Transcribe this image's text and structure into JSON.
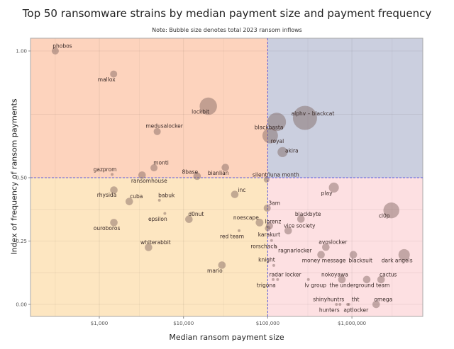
{
  "chart_data": {
    "type": "scatter",
    "title": "Top 50 ransomware strains by median payment size and payment frequency",
    "subtitle": "Note: Bubble size denotes total 2023 ransom inflows",
    "xlabel": "Median ransom payment size",
    "ylabel": "Index of frequency of ransom payments",
    "x_scale": "log",
    "xlim": [
      200,
      9000000
    ],
    "ylim": [
      -0.05,
      1.05
    ],
    "x_ticks": [
      1000,
      10000,
      100000,
      1000000
    ],
    "x_tick_labels": [
      "$1,000",
      "$10,000",
      "$100,000",
      "$1,000,000"
    ],
    "y_ticks": [
      0,
      0.25,
      0.5,
      1.0
    ],
    "y_tick_labels": [
      "0.00",
      "0.25",
      "0.50",
      "1.00"
    ],
    "thresholds": {
      "x": 100000,
      "y": 0.5
    },
    "grid": true,
    "quadrant_colors": {
      "top_left": "#fdd3bd",
      "top_right": "#cbcfdf",
      "bottom_left": "#fde6c1",
      "bottom_right": "#fde0e2"
    },
    "bubble_color": "#7a5f5a",
    "threshold_color": "#5a5ae0",
    "points": [
      {
        "name": "phobos",
        "x": 300,
        "y": 1.0,
        "size": 25
      },
      {
        "name": "mallox",
        "x": 1480,
        "y": 0.909,
        "size": 25
      },
      {
        "name": "lockbit",
        "x": 19700,
        "y": 0.782,
        "size": 150
      },
      {
        "name": "medusalocker",
        "x": 4870,
        "y": 0.682,
        "size": 25
      },
      {
        "name": "monti",
        "x": 4460,
        "y": 0.539,
        "size": 25
      },
      {
        "name": "bianlian",
        "x": 31400,
        "y": 0.54,
        "size": 28
      },
      {
        "name": "gazprom",
        "x": 1420,
        "y": 0.513,
        "size": 4
      },
      {
        "name": "ransomhouse",
        "x": 3220,
        "y": 0.51,
        "size": 28
      },
      {
        "name": "8base",
        "x": 14500,
        "y": 0.506,
        "size": 28
      },
      {
        "name": "silent/luna month",
        "x": 97000,
        "y": 0.492,
        "size": 16
      },
      {
        "name": "rhysida",
        "x": 1490,
        "y": 0.451,
        "size": 28
      },
      {
        "name": "cuba",
        "x": 2270,
        "y": 0.406,
        "size": 28
      },
      {
        "name": "babuk",
        "x": 5170,
        "y": 0.411,
        "size": 4
      },
      {
        "name": "epsilon",
        "x": 6000,
        "y": 0.359,
        "size": 4
      },
      {
        "name": "d0nut",
        "x": 11600,
        "y": 0.336,
        "size": 28
      },
      {
        "name": "inc",
        "x": 40600,
        "y": 0.434,
        "size": 28
      },
      {
        "name": "noescape",
        "x": 80000,
        "y": 0.323,
        "size": 30
      },
      {
        "name": "red team",
        "x": 45700,
        "y": 0.291,
        "size": 4
      },
      {
        "name": "ouroboros",
        "x": 1490,
        "y": 0.323,
        "size": 28
      },
      {
        "name": "whiterabbit",
        "x": 3840,
        "y": 0.225,
        "size": 28
      },
      {
        "name": "mario",
        "x": 28600,
        "y": 0.155,
        "size": 28
      },
      {
        "name": "3am",
        "x": 98600,
        "y": 0.38,
        "size": 25
      },
      {
        "name": "lorenz",
        "x": 105000,
        "y": 0.31,
        "size": 25
      },
      {
        "name": "karakurt",
        "x": 100000,
        "y": 0.3,
        "size": 16
      },
      {
        "name": "blackbyte",
        "x": 248000,
        "y": 0.337,
        "size": 28
      },
      {
        "name": "vice society",
        "x": 175000,
        "y": 0.291,
        "size": 28
      },
      {
        "name": "play",
        "x": 610000,
        "y": 0.461,
        "size": 50
      },
      {
        "name": "cl0p",
        "x": 2940000,
        "y": 0.371,
        "size": 125
      },
      {
        "name": "rorschach",
        "x": 111000,
        "y": 0.252,
        "size": 4
      },
      {
        "name": "ragnarlocker",
        "x": 125000,
        "y": 0.226,
        "size": 4
      },
      {
        "name": "knight",
        "x": 118000,
        "y": 0.154,
        "size": 4
      },
      {
        "name": "avoslocker",
        "x": 490000,
        "y": 0.226,
        "size": 28
      },
      {
        "name": "money message",
        "x": 430000,
        "y": 0.196,
        "size": 28
      },
      {
        "name": "blacksuit",
        "x": 1040000,
        "y": 0.196,
        "size": 28
      },
      {
        "name": "dark angels",
        "x": 4170000,
        "y": 0.196,
        "size": 64
      },
      {
        "name": "radar locker",
        "x": 116000,
        "y": 0.098,
        "size": 4
      },
      {
        "name": "trigona",
        "x": 131000,
        "y": 0.098,
        "size": 4
      },
      {
        "name": "lv group",
        "x": 304000,
        "y": 0.098,
        "size": 4
      },
      {
        "name": "nokoyawa",
        "x": 760000,
        "y": 0.098,
        "size": 28
      },
      {
        "name": "the underground team",
        "x": 1500000,
        "y": 0.098,
        "size": 28
      },
      {
        "name": "cactus",
        "x": 2220000,
        "y": 0.098,
        "size": 28
      },
      {
        "name": "shinyhuntrs",
        "x": 655000,
        "y": 0.0,
        "size": 4
      },
      {
        "name": "hunters",
        "x": 721000,
        "y": 0.0,
        "size": 4
      },
      {
        "name": "tht",
        "x": 890000,
        "y": 0.0,
        "size": 4
      },
      {
        "name": "aptlocker",
        "x": 920000,
        "y": 0.0,
        "size": 4
      },
      {
        "name": "omega",
        "x": 1940000,
        "y": 0.0,
        "size": 28
      },
      {
        "name": "alphv – blackcat",
        "x": 277000,
        "y": 0.736,
        "size": 290
      },
      {
        "name": "blackbasta",
        "x": 128000,
        "y": 0.72,
        "size": 170
      },
      {
        "name": "royal",
        "x": 107000,
        "y": 0.666,
        "size": 120
      },
      {
        "name": "akira",
        "x": 150000,
        "y": 0.601,
        "size": 50
      }
    ]
  }
}
